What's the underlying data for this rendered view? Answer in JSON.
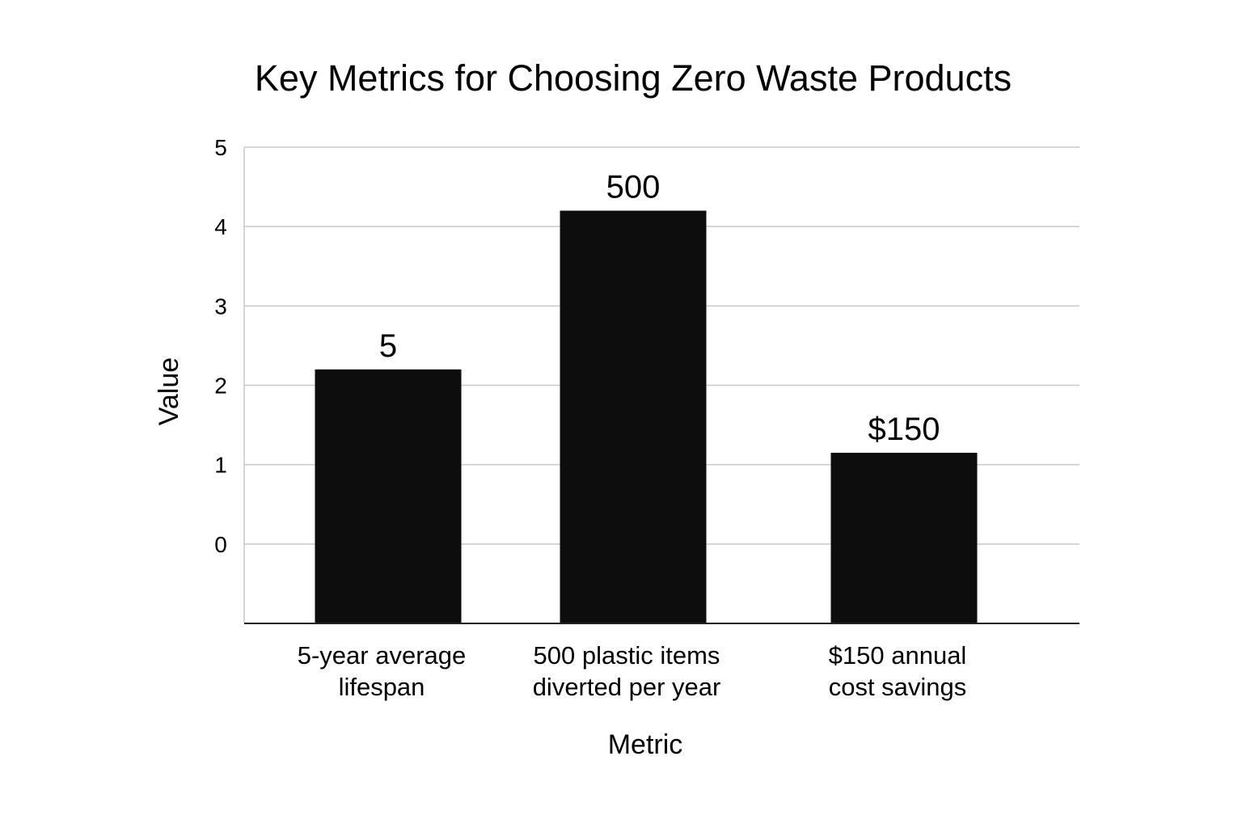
{
  "chart_data": {
    "type": "bar",
    "title": "Key Metrics for Choosing Zero Waste Products",
    "xlabel": "Metric",
    "ylabel": "Value",
    "categories": [
      [
        "5-year average",
        "lifespan"
      ],
      [
        "500 plastic items",
        "diverted per year"
      ],
      [
        "$150 annual",
        "cost savings"
      ]
    ],
    "values": [
      2.2,
      4.2,
      1.15
    ],
    "data_labels": [
      "5",
      "500",
      "$150"
    ],
    "yticks": [
      "0",
      "1",
      "2",
      "3",
      "4",
      "5"
    ],
    "ylim": [
      -1,
      5
    ],
    "grid": true,
    "bar_color": "#0d0d0d",
    "grid_color": "#c8c8c8"
  }
}
